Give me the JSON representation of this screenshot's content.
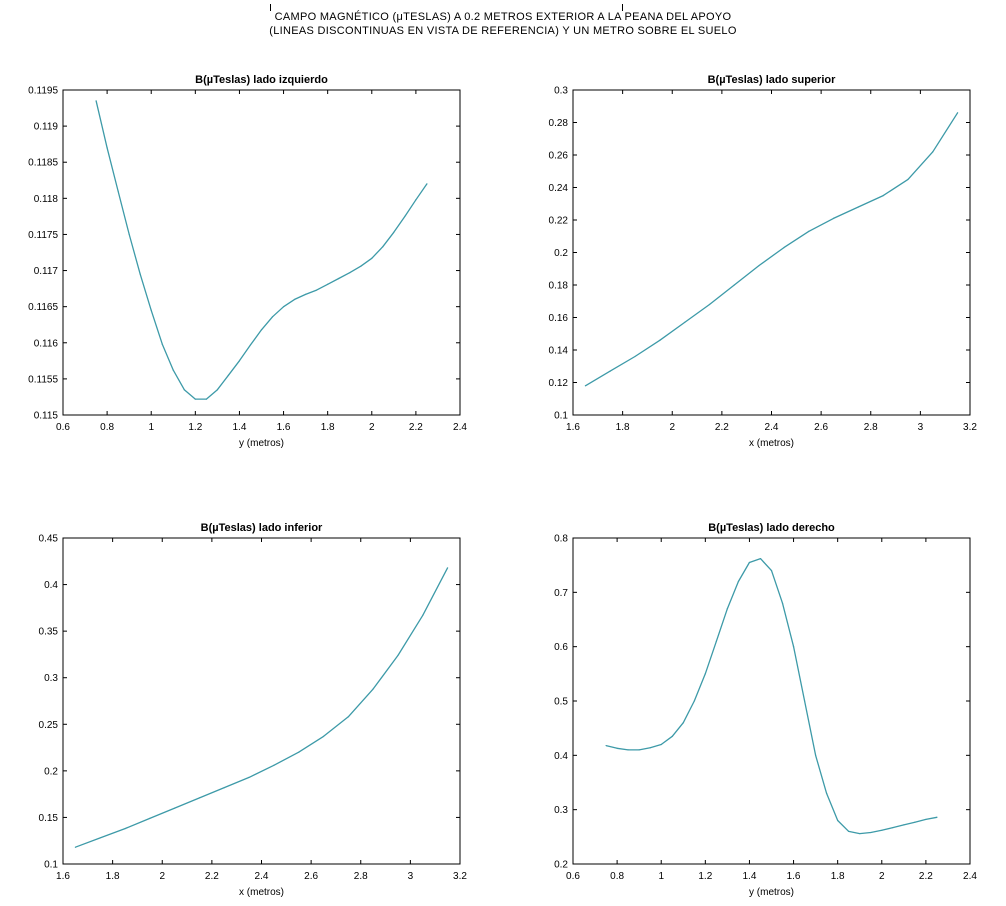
{
  "figure": {
    "title_line1": "CAMPO MAGNÉTICO (μTESLAS) A 0.2 METROS EXTERIOR A LA PEANA DEL APOYO",
    "title_line2": "(LINEAS DISCONTINUAS EN VISTA DE REFERENCIA) Y UN METRO SOBRE EL SUELO"
  },
  "colors": {
    "line": "#3d9aa8",
    "axis": "#000000",
    "background": "#ffffff"
  },
  "chart_data": [
    {
      "type": "line",
      "title": "B(µTeslas) lado izquierdo",
      "xlabel": "y (metros)",
      "ylabel": "",
      "xlim": [
        0.6,
        2.4
      ],
      "ylim": [
        0.115,
        0.1195
      ],
      "xticks": [
        0.6,
        0.8,
        1,
        1.2,
        1.4,
        1.6,
        1.8,
        2,
        2.2,
        2.4
      ],
      "xtick_labels": [
        "0.6",
        "0.8",
        "1",
        "1.2",
        "1.4",
        "1.6",
        "1.8",
        "2",
        "2.2",
        "2.4"
      ],
      "yticks": [
        0.115,
        0.1155,
        0.116,
        0.1165,
        0.117,
        0.1175,
        0.118,
        0.1185,
        0.119,
        0.1195
      ],
      "ytick_labels": [
        "0.115",
        "0.1155",
        "0.116",
        "0.1165",
        "0.117",
        "0.1175",
        "0.118",
        "0.1185",
        "0.119",
        "0.1195"
      ],
      "grid": false,
      "x": [
        0.75,
        0.8,
        0.85,
        0.9,
        0.95,
        1.0,
        1.05,
        1.1,
        1.15,
        1.2,
        1.25,
        1.3,
        1.35,
        1.4,
        1.45,
        1.5,
        1.55,
        1.6,
        1.65,
        1.7,
        1.75,
        1.8,
        1.85,
        1.9,
        1.95,
        2.0,
        2.05,
        2.1,
        2.15,
        2.2,
        2.25
      ],
      "y": [
        0.11935,
        0.1187,
        0.1181,
        0.1175,
        0.11695,
        0.11645,
        0.11598,
        0.11562,
        0.11535,
        0.11522,
        0.11522,
        0.11535,
        0.11555,
        0.11575,
        0.11597,
        0.11618,
        0.11636,
        0.1165,
        0.1166,
        0.11667,
        0.11673,
        0.11681,
        0.11689,
        0.11697,
        0.11706,
        0.11717,
        0.11733,
        0.11753,
        0.11775,
        0.11798,
        0.1182
      ]
    },
    {
      "type": "line",
      "title": "B(µTeslas) lado superior",
      "xlabel": "x (metros)",
      "ylabel": "",
      "xlim": [
        1.6,
        3.2
      ],
      "ylim": [
        0.1,
        0.3
      ],
      "xticks": [
        1.6,
        1.8,
        2,
        2.2,
        2.4,
        2.6,
        2.8,
        3,
        3.2
      ],
      "xtick_labels": [
        "1.6",
        "1.8",
        "2",
        "2.2",
        "2.4",
        "2.6",
        "2.8",
        "3",
        "3.2"
      ],
      "yticks": [
        0.1,
        0.12,
        0.14,
        0.16,
        0.18,
        0.2,
        0.22,
        0.24,
        0.26,
        0.28,
        0.3
      ],
      "ytick_labels": [
        "0.1",
        "0.12",
        "0.14",
        "0.16",
        "0.18",
        "0.2",
        "0.22",
        "0.24",
        "0.26",
        "0.28",
        "0.3"
      ],
      "grid": false,
      "x": [
        1.65,
        1.75,
        1.85,
        1.95,
        2.05,
        2.15,
        2.25,
        2.35,
        2.45,
        2.55,
        2.65,
        2.75,
        2.85,
        2.95,
        3.05,
        3.15
      ],
      "y": [
        0.118,
        0.127,
        0.136,
        0.146,
        0.157,
        0.168,
        0.18,
        0.192,
        0.203,
        0.213,
        0.221,
        0.228,
        0.235,
        0.245,
        0.262,
        0.286
      ]
    },
    {
      "type": "line",
      "title": "B(µTeslas) lado inferior",
      "xlabel": "x (metros)",
      "ylabel": "",
      "xlim": [
        1.6,
        3.2
      ],
      "ylim": [
        0.1,
        0.45
      ],
      "xticks": [
        1.6,
        1.8,
        2,
        2.2,
        2.4,
        2.6,
        2.8,
        3,
        3.2
      ],
      "xtick_labels": [
        "1.6",
        "1.8",
        "2",
        "2.2",
        "2.4",
        "2.6",
        "2.8",
        "3",
        "3.2"
      ],
      "yticks": [
        0.1,
        0.15,
        0.2,
        0.25,
        0.3,
        0.35,
        0.4,
        0.45
      ],
      "ytick_labels": [
        "0.1",
        "0.15",
        "0.2",
        "0.25",
        "0.3",
        "0.35",
        "0.4",
        "0.45"
      ],
      "grid": false,
      "x": [
        1.65,
        1.75,
        1.85,
        1.95,
        2.05,
        2.15,
        2.25,
        2.35,
        2.45,
        2.55,
        2.65,
        2.75,
        2.85,
        2.95,
        3.05,
        3.15
      ],
      "y": [
        0.118,
        0.128,
        0.138,
        0.149,
        0.16,
        0.171,
        0.182,
        0.193,
        0.206,
        0.22,
        0.237,
        0.258,
        0.288,
        0.324,
        0.367,
        0.418
      ]
    },
    {
      "type": "line",
      "title": "B(µTeslas) lado derecho",
      "xlabel": "y (metros)",
      "ylabel": "",
      "xlim": [
        0.6,
        2.4
      ],
      "ylim": [
        0.2,
        0.8
      ],
      "xticks": [
        0.6,
        0.8,
        1,
        1.2,
        1.4,
        1.6,
        1.8,
        2,
        2.2,
        2.4
      ],
      "xtick_labels": [
        "0.6",
        "0.8",
        "1",
        "1.2",
        "1.4",
        "1.6",
        "1.8",
        "2",
        "2.2",
        "2.4"
      ],
      "yticks": [
        0.2,
        0.3,
        0.4,
        0.5,
        0.6,
        0.7,
        0.8
      ],
      "ytick_labels": [
        "0.2",
        "0.3",
        "0.4",
        "0.5",
        "0.6",
        "0.7",
        "0.8"
      ],
      "grid": false,
      "x": [
        0.75,
        0.8,
        0.85,
        0.9,
        0.95,
        1.0,
        1.05,
        1.1,
        1.15,
        1.2,
        1.25,
        1.3,
        1.35,
        1.4,
        1.45,
        1.5,
        1.55,
        1.6,
        1.65,
        1.7,
        1.75,
        1.8,
        1.85,
        1.9,
        1.95,
        2.0,
        2.05,
        2.1,
        2.15,
        2.2,
        2.25
      ],
      "y": [
        0.418,
        0.413,
        0.41,
        0.41,
        0.414,
        0.42,
        0.435,
        0.46,
        0.5,
        0.55,
        0.61,
        0.67,
        0.72,
        0.755,
        0.762,
        0.74,
        0.68,
        0.6,
        0.5,
        0.4,
        0.33,
        0.28,
        0.26,
        0.256,
        0.258,
        0.262,
        0.267,
        0.272,
        0.277,
        0.282,
        0.286
      ]
    }
  ]
}
